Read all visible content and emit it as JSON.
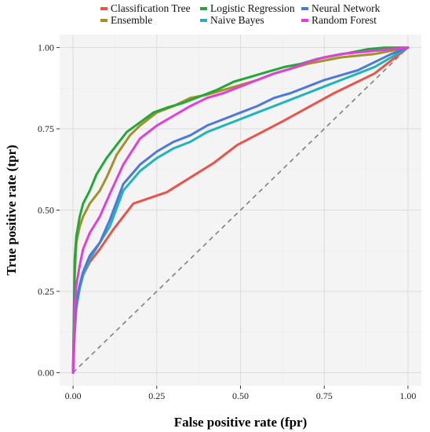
{
  "chart_data": {
    "type": "line",
    "title": "",
    "xlabel": "False positive rate (fpr)",
    "ylabel": "True positive rate (tpr)",
    "xlim": [
      -0.04,
      1.04
    ],
    "ylim": [
      -0.04,
      1.04
    ],
    "xticks": [
      "0.00",
      "0.25",
      "0.50",
      "0.75",
      "1.00"
    ],
    "yticks": [
      "0.00",
      "0.25",
      "0.50",
      "0.75",
      "1.00"
    ],
    "grid": true,
    "legend_position": "top",
    "reference_line": {
      "style": "dashed",
      "x": [
        0,
        1
      ],
      "y": [
        0,
        1
      ],
      "color": "#7f7f7f"
    },
    "series": [
      {
        "name": "Classification Tree",
        "color": "#E8534A",
        "x": [
          0,
          0.005,
          0.01,
          0.02,
          0.03,
          0.05,
          0.08,
          0.12,
          0.18,
          0.28,
          0.42,
          0.49,
          0.62,
          0.78,
          0.9,
          1.0
        ],
        "y": [
          0,
          0.12,
          0.2,
          0.26,
          0.3,
          0.34,
          0.38,
          0.44,
          0.52,
          0.555,
          0.645,
          0.7,
          0.77,
          0.86,
          0.92,
          1.0
        ]
      },
      {
        "name": "Ensemble",
        "color": "#A3902A",
        "x": [
          0,
          0.005,
          0.01,
          0.02,
          0.03,
          0.05,
          0.08,
          0.1,
          0.13,
          0.17,
          0.2,
          0.25,
          0.3,
          0.35,
          0.4,
          0.45,
          0.5,
          0.55,
          0.6,
          0.65,
          0.7,
          0.75,
          0.8,
          0.85,
          0.9,
          0.95,
          1.0
        ],
        "y": [
          0,
          0.3,
          0.4,
          0.45,
          0.48,
          0.52,
          0.56,
          0.6,
          0.67,
          0.73,
          0.76,
          0.8,
          0.82,
          0.845,
          0.855,
          0.87,
          0.885,
          0.9,
          0.92,
          0.935,
          0.95,
          0.96,
          0.97,
          0.975,
          0.98,
          0.99,
          1.0
        ]
      },
      {
        "name": "Logistic Regression",
        "color": "#22A838",
        "x": [
          0,
          0.005,
          0.01,
          0.02,
          0.03,
          0.05,
          0.07,
          0.1,
          0.13,
          0.16,
          0.2,
          0.24,
          0.28,
          0.33,
          0.38,
          0.43,
          0.48,
          0.53,
          0.58,
          0.63,
          0.68,
          0.73,
          0.78,
          0.83,
          0.88,
          0.93,
          1.0
        ],
        "y": [
          0,
          0.35,
          0.42,
          0.48,
          0.52,
          0.56,
          0.61,
          0.66,
          0.7,
          0.74,
          0.77,
          0.8,
          0.815,
          0.83,
          0.85,
          0.87,
          0.895,
          0.91,
          0.925,
          0.94,
          0.95,
          0.965,
          0.975,
          0.985,
          0.995,
          1.0,
          1.0
        ]
      },
      {
        "name": "Naive Bayes",
        "color": "#1FB5B8",
        "x": [
          0,
          0.005,
          0.01,
          0.02,
          0.03,
          0.05,
          0.08,
          0.11,
          0.15,
          0.2,
          0.25,
          0.3,
          0.35,
          0.4,
          0.45,
          0.5,
          0.55,
          0.6,
          0.65,
          0.7,
          0.75,
          0.8,
          0.85,
          0.9,
          0.95,
          1.0
        ],
        "y": [
          0,
          0.15,
          0.2,
          0.26,
          0.3,
          0.35,
          0.4,
          0.45,
          0.56,
          0.62,
          0.66,
          0.69,
          0.71,
          0.74,
          0.76,
          0.78,
          0.8,
          0.82,
          0.84,
          0.86,
          0.88,
          0.9,
          0.92,
          0.94,
          0.97,
          1.0
        ]
      },
      {
        "name": "Neural Network",
        "color": "#5078D8",
        "x": [
          0,
          0.005,
          0.01,
          0.02,
          0.03,
          0.05,
          0.08,
          0.11,
          0.15,
          0.2,
          0.25,
          0.3,
          0.35,
          0.4,
          0.45,
          0.5,
          0.55,
          0.6,
          0.65,
          0.7,
          0.75,
          0.8,
          0.85,
          0.9,
          0.95,
          1.0
        ],
        "y": [
          0,
          0.15,
          0.22,
          0.27,
          0.31,
          0.36,
          0.4,
          0.47,
          0.58,
          0.64,
          0.68,
          0.71,
          0.73,
          0.76,
          0.78,
          0.8,
          0.82,
          0.845,
          0.86,
          0.88,
          0.9,
          0.915,
          0.93,
          0.955,
          0.98,
          1.0
        ]
      },
      {
        "name": "Random Forest",
        "color": "#E03FD8",
        "x": [
          0,
          0.005,
          0.01,
          0.02,
          0.03,
          0.05,
          0.08,
          0.11,
          0.15,
          0.2,
          0.25,
          0.3,
          0.35,
          0.4,
          0.45,
          0.5,
          0.55,
          0.6,
          0.65,
          0.7,
          0.75,
          0.8,
          0.85,
          0.9,
          0.95,
          1.0
        ],
        "y": [
          0,
          0.2,
          0.27,
          0.33,
          0.38,
          0.43,
          0.48,
          0.55,
          0.64,
          0.72,
          0.76,
          0.79,
          0.82,
          0.845,
          0.86,
          0.88,
          0.9,
          0.92,
          0.935,
          0.955,
          0.97,
          0.98,
          0.985,
          0.99,
          0.995,
          1.0
        ]
      }
    ]
  }
}
